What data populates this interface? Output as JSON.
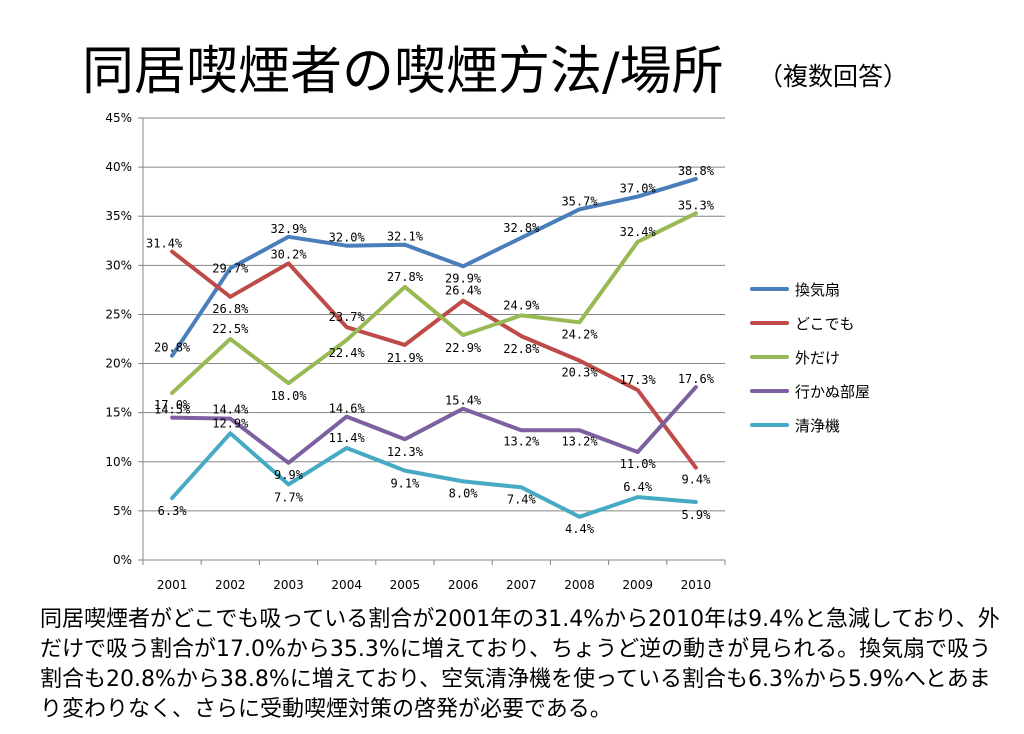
{
  "slide": {
    "title": "同居喫煙者の喫煙方法/場所",
    "subtitle": "（複数回答）",
    "caption": "同居喫煙者がどこでも吸っている割合が2001年の31.4%から2010年は9.4%と急減しており、外だけで吸う割合が17.0%から35.3%に増えており、ちょうど逆の動きが見られる。換気扇で吸う割合も20.8%から38.8%に増えており、空気清浄機を使っている割合も6.3%から5.9%へとあまり変わりなく、さらに受動喫煙対策の啓発が必要である。"
  },
  "chart_data": {
    "type": "line",
    "categories": [
      "2001",
      "2002",
      "2003",
      "2004",
      "2005",
      "2006",
      "2007",
      "2008",
      "2009",
      "2010"
    ],
    "y_ticks": [
      "0%",
      "5%",
      "10%",
      "15%",
      "20%",
      "25%",
      "30%",
      "35%",
      "40%",
      "45%"
    ],
    "ylim": [
      0,
      45
    ],
    "grid": true,
    "legend_position": "right",
    "series": [
      {
        "name": "換気扇",
        "color": "#4a7ebb",
        "values": [
          20.8,
          29.7,
          32.9,
          32.0,
          32.1,
          29.9,
          32.8,
          35.7,
          37.0,
          38.8
        ],
        "labels": [
          "20.8%",
          "29.7%",
          "32.9%",
          "32.0%",
          "32.1%",
          "29.9%",
          "32.8%",
          "35.7%",
          "37.0%",
          "38.8%"
        ]
      },
      {
        "name": "どこでも",
        "color": "#be4b48",
        "values": [
          31.4,
          26.8,
          30.2,
          23.7,
          21.9,
          26.4,
          22.8,
          20.3,
          17.3,
          9.4
        ],
        "labels": [
          "31.4%",
          "26.8%",
          "30.2%",
          "23.7%",
          "21.9%",
          "26.4%",
          "22.8%",
          "20.3%",
          "17.3%",
          "9.4%"
        ]
      },
      {
        "name": "外だけ",
        "color": "#98b954",
        "values": [
          17.0,
          22.5,
          18.0,
          22.4,
          27.8,
          22.9,
          24.9,
          24.2,
          32.4,
          35.3
        ],
        "labels": [
          "17.0%",
          "22.5%",
          "18.0%",
          "22.4%",
          "27.8%",
          "22.9%",
          "24.9%",
          "24.2%",
          "32.4%",
          "35.3%"
        ]
      },
      {
        "name": "行かぬ部屋",
        "color": "#7d60a0",
        "values": [
          14.5,
          14.4,
          9.9,
          14.6,
          12.3,
          15.4,
          13.2,
          13.2,
          11.0,
          17.6
        ],
        "labels": [
          "14.5%",
          "14.4%",
          "9.9%",
          "14.6%",
          "12.3%",
          "15.4%",
          "13.2%",
          "13.2%",
          "11.0%",
          "17.6%"
        ]
      },
      {
        "name": "清浄機",
        "color": "#46aac5",
        "values": [
          6.3,
          12.9,
          7.7,
          11.4,
          9.1,
          8.0,
          7.4,
          4.4,
          6.4,
          5.9
        ],
        "labels": [
          "6.3%",
          "12.9%",
          "7.7%",
          "11.4%",
          "9.1%",
          "8.0%",
          "7.4%",
          "4.4%",
          "6.4%",
          "5.9%"
        ]
      }
    ]
  }
}
